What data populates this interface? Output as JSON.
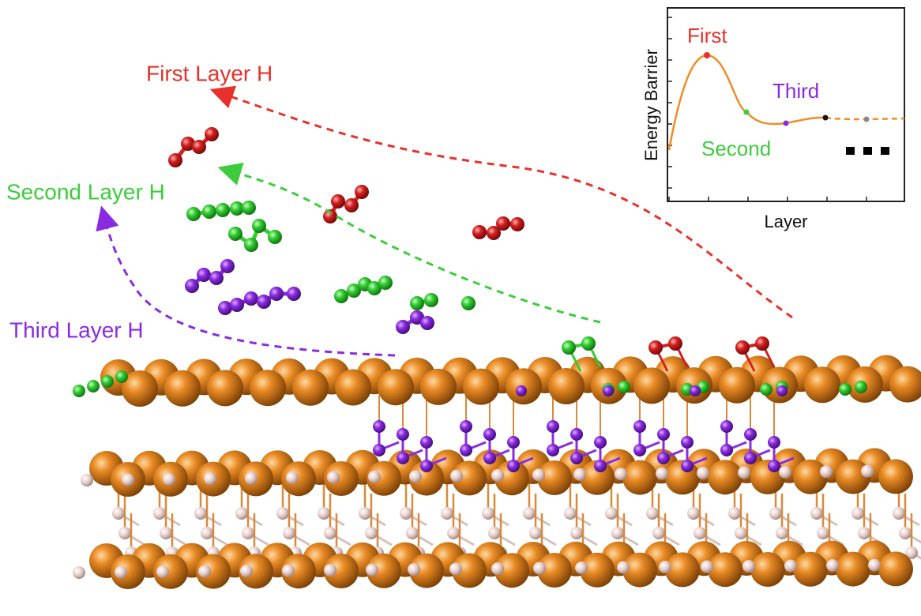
{
  "labels": {
    "first": "First Layer H",
    "second": "Second Layer H",
    "third": "Third Layer H"
  },
  "inset": {
    "y_axis_label": "Energy Barrier",
    "x_axis_label": "Layer",
    "annotations": {
      "first": "First",
      "second": "Second",
      "third": "Third"
    }
  }
}
